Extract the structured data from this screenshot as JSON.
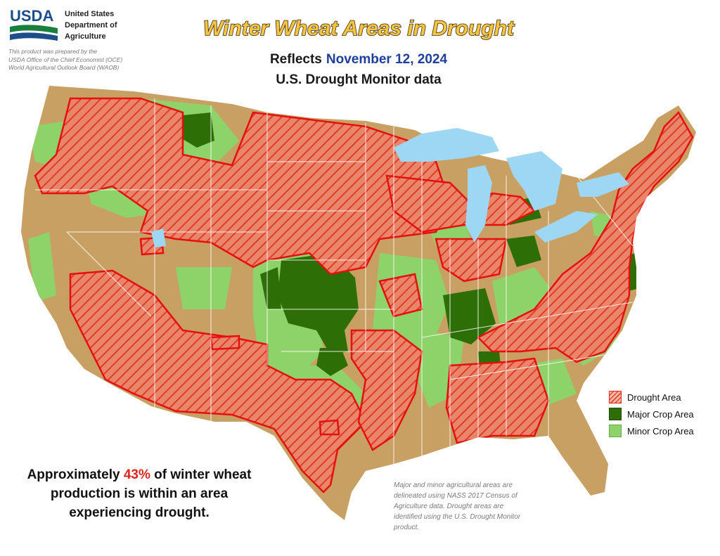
{
  "header": {
    "logo_text": "USDA",
    "agency_lines": [
      "United States",
      "Department of",
      "Agriculture"
    ],
    "prepared_lines": [
      "This product was prepared by the",
      "USDA Office of the Chief Economist (OCE)",
      "World Agricultural Outlook Board (WAOB)"
    ],
    "title": "Winter Wheat Areas in Drought",
    "reflects_label": "Reflects",
    "date": "November 12, 2024",
    "subtitle": "U.S. Drought Monitor data"
  },
  "legend": {
    "items": [
      {
        "label": "Drought Area",
        "color": "#e2442a"
      },
      {
        "label": "Major Crop Area",
        "color": "#2d6e07"
      },
      {
        "label": "Minor Crop Area",
        "color": "#8ed36a"
      }
    ]
  },
  "summary": {
    "prefix": "Approximately",
    "percent": "43%",
    "line1_suffix": "of winter wheat",
    "line2": "production is within an area",
    "line3": "experiencing drought."
  },
  "notes": {
    "lines": [
      "Major and minor agricultural areas are",
      "delineated using NASS 2017 Census of",
      "Agriculture data.  Drought areas are",
      "identified using the U.S. Drought Monitor",
      "product."
    ]
  },
  "colors": {
    "land": "#c9a063",
    "water": "#9dd7f3",
    "drought": "#e2442a",
    "major": "#2d6e07",
    "minor": "#8ed36a",
    "title_fill": "#f5c542",
    "title_stroke": "#3a2a10",
    "date": "#1f3f9c",
    "percent": "#e0241b"
  }
}
